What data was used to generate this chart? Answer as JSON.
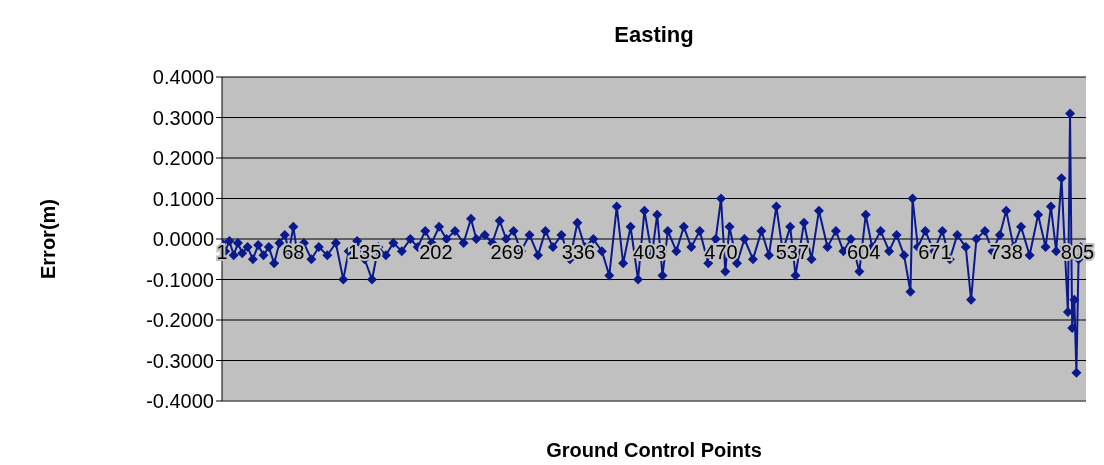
{
  "chart_data": {
    "type": "line",
    "title": "Easting",
    "xlabel": "Ground Control Points",
    "ylabel": "Error(m)",
    "color": "#0a1a8c",
    "marker": "diamond",
    "grid": "y",
    "xlim": [
      1,
      813
    ],
    "xticks": [
      1,
      68,
      135,
      202,
      269,
      336,
      403,
      470,
      537,
      604,
      671,
      738,
      805
    ],
    "ylim": [
      -0.4,
      0.4
    ],
    "yticks": [
      {
        "value": -0.4,
        "label": "-0.4000"
      },
      {
        "value": -0.3,
        "label": "-0.3000"
      },
      {
        "value": -0.2,
        "label": "-0.2000"
      },
      {
        "value": -0.1,
        "label": "-0.1000"
      },
      {
        "value": 0,
        "label": "0.0000"
      },
      {
        "value": 0.1,
        "label": "0.1000"
      },
      {
        "value": 0.2,
        "label": "0.2000"
      },
      {
        "value": 0.3,
        "label": "0.3000"
      },
      {
        "value": 0.4,
        "label": "0.4000"
      }
    ],
    "x": [
      1,
      4,
      8,
      12,
      16,
      20,
      25,
      30,
      35,
      40,
      45,
      50,
      55,
      60,
      64,
      68,
      72,
      78,
      85,
      92,
      100,
      108,
      115,
      120,
      128,
      135,
      142,
      148,
      155,
      162,
      170,
      178,
      185,
      192,
      198,
      205,
      212,
      220,
      228,
      235,
      240,
      248,
      255,
      262,
      268,
      275,
      282,
      290,
      298,
      305,
      312,
      320,
      328,
      335,
      342,
      350,
      358,
      365,
      372,
      378,
      385,
      392,
      398,
      405,
      410,
      415,
      420,
      428,
      435,
      442,
      450,
      458,
      465,
      470,
      474,
      478,
      485,
      492,
      500,
      508,
      515,
      522,
      528,
      535,
      540,
      548,
      555,
      562,
      570,
      578,
      585,
      592,
      600,
      606,
      612,
      620,
      628,
      635,
      642,
      648,
      650,
      655,
      662,
      670,
      678,
      685,
      692,
      700,
      705,
      710,
      718,
      725,
      732,
      738,
      745,
      752,
      760,
      768,
      775,
      780,
      785,
      790,
      793,
      796,
      798,
      800,
      802,
      804,
      806,
      808
    ],
    "values": [
      -0.01,
      -0.03,
      -0.005,
      -0.04,
      -0.01,
      -0.035,
      -0.02,
      -0.05,
      -0.015,
      -0.04,
      -0.02,
      -0.06,
      -0.01,
      0.01,
      -0.03,
      0.03,
      -0.04,
      -0.01,
      -0.05,
      -0.02,
      -0.04,
      -0.01,
      -0.1,
      -0.03,
      -0.005,
      -0.05,
      -0.1,
      -0.02,
      -0.04,
      -0.01,
      -0.03,
      0.0,
      -0.02,
      0.02,
      -0.01,
      0.03,
      0.0,
      0.02,
      -0.01,
      0.05,
      0.0,
      0.01,
      -0.01,
      0.045,
      0.0,
      0.02,
      -0.03,
      0.01,
      -0.04,
      0.02,
      -0.02,
      0.01,
      -0.05,
      0.04,
      -0.02,
      0.0,
      -0.03,
      -0.09,
      0.08,
      -0.06,
      0.03,
      -0.1,
      0.07,
      -0.04,
      0.06,
      -0.09,
      0.02,
      -0.03,
      0.03,
      -0.02,
      0.02,
      -0.06,
      0.0,
      0.1,
      -0.08,
      0.03,
      -0.06,
      0.0,
      -0.05,
      0.02,
      -0.04,
      0.08,
      -0.03,
      0.03,
      -0.09,
      0.04,
      -0.05,
      0.07,
      -0.02,
      0.02,
      -0.03,
      0.0,
      -0.08,
      0.06,
      -0.02,
      0.02,
      -0.03,
      0.01,
      -0.04,
      -0.13,
      0.1,
      -0.02,
      0.02,
      -0.03,
      0.02,
      -0.05,
      0.01,
      -0.02,
      -0.15,
      0.0,
      0.02,
      -0.03,
      0.01,
      0.07,
      -0.02,
      0.03,
      -0.04,
      0.06,
      -0.02,
      0.08,
      -0.03,
      0.15,
      -0.02,
      -0.18,
      0.31,
      -0.22,
      -0.15,
      -0.33,
      -0.05,
      -0.02
    ]
  }
}
